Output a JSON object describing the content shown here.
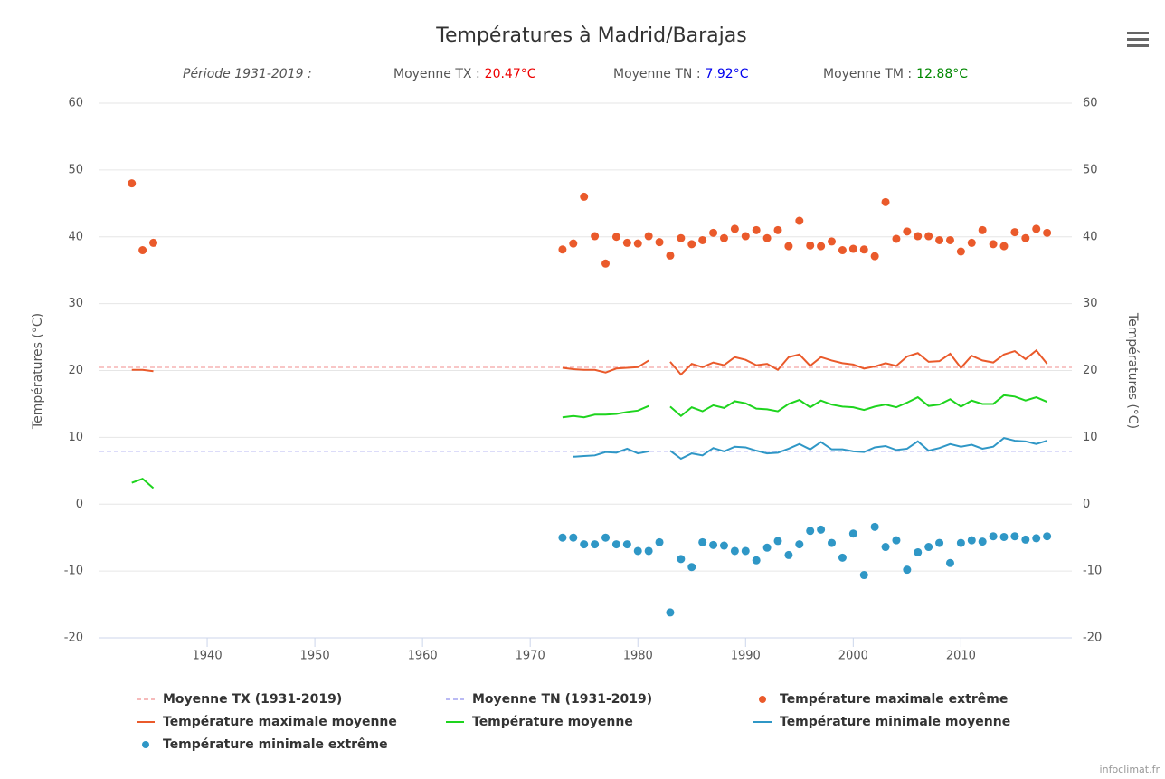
{
  "chart_data": {
    "type": "line",
    "title": "Températures à Madrid/Barajas",
    "period": "Période 1931-2019 :",
    "averages": [
      {
        "label": "Moyenne TX :",
        "value": 20.47,
        "value_label": "20.47°C",
        "color": "#ee0000",
        "line_name": "Moyenne TX (1931-2019)",
        "line_color": "#f4a3a3"
      },
      {
        "label": "Moyenne TN :",
        "value": 7.92,
        "value_label": "7.92°C",
        "color": "#0000ee",
        "line_name": "Moyenne TN (1931-2019)",
        "line_color": "#a3a3f0"
      },
      {
        "label": "Moyenne TM :",
        "value": 12.88,
        "value_label": "12.88°C",
        "color": "#008800"
      }
    ],
    "y_label": "Températures (°C)",
    "y2_label": "Températures (°C)",
    "x": [
      1933,
      1934,
      1935,
      1936,
      1973,
      1974,
      1975,
      1976,
      1977,
      1978,
      1979,
      1980,
      1981,
      1982,
      1983,
      1984,
      1985,
      1986,
      1987,
      1988,
      1989,
      1990,
      1991,
      1992,
      1993,
      1994,
      1995,
      1996,
      1997,
      1998,
      1999,
      2000,
      2001,
      2002,
      2003,
      2004,
      2005,
      2006,
      2007,
      2008,
      2009,
      2010,
      2011,
      2012,
      2013,
      2014,
      2015,
      2016,
      2017,
      2018
    ],
    "xlim": [
      1930,
      2020.3
    ],
    "xticks": [
      1940,
      1950,
      1960,
      1970,
      1980,
      1990,
      2000,
      2010
    ],
    "ylim": [
      -20,
      60
    ],
    "yticks": [
      -20,
      -10,
      0,
      10,
      20,
      30,
      40,
      50,
      60
    ],
    "y2lim": [
      -20,
      60
    ],
    "y2ticks": [
      -20,
      -10,
      0,
      10,
      20,
      30,
      40,
      50,
      60
    ],
    "grid": true,
    "series": [
      {
        "name": "Température maximale extrême",
        "type": "scatter",
        "color": "#ea5a2b",
        "values": [
          48,
          38,
          39.1,
          null,
          38.1,
          39,
          46,
          40.1,
          36,
          40,
          39.1,
          39,
          40.1,
          39.2,
          37.2,
          39.8,
          38.9,
          39.5,
          40.6,
          39.8,
          41.2,
          40.1,
          41,
          39.8,
          41,
          38.6,
          42.4,
          38.7,
          38.6,
          39.3,
          38,
          38.2,
          38.1,
          37.1,
          45.2,
          39.7,
          40.8,
          40.1,
          40.1,
          39.5,
          39.5,
          37.8,
          39.1,
          41,
          38.9,
          38.6,
          40.7,
          39.8,
          41.2,
          40.6
        ]
      },
      {
        "name": "Température maximale moyenne",
        "type": "line",
        "color": "#ea5a2b",
        "values": [
          20.1,
          20.1,
          19.9,
          null,
          20.4,
          20.2,
          20.1,
          20.1,
          19.7,
          20.3,
          20.4,
          20.5,
          21.5,
          null,
          21.3,
          19.4,
          21,
          20.5,
          21.2,
          20.8,
          22,
          21.6,
          20.8,
          21,
          20.1,
          22,
          22.4,
          20.7,
          22,
          21.5,
          21.1,
          20.9,
          20.3,
          20.6,
          21.1,
          20.7,
          22.1,
          22.6,
          21.3,
          21.4,
          22.5,
          20.4,
          22.2,
          21.5,
          21.2,
          22.4,
          22.9,
          21.7,
          23,
          21
        ]
      },
      {
        "name": "Température moyenne",
        "type": "line",
        "color": "#1ed41e",
        "values": [
          3.2,
          3.8,
          2.4,
          null,
          13,
          13.2,
          13,
          13.4,
          13.4,
          13.5,
          13.8,
          14,
          14.7,
          null,
          14.6,
          13.2,
          14.5,
          13.9,
          14.8,
          14.4,
          15.4,
          15.1,
          14.3,
          14.2,
          13.9,
          15,
          15.6,
          14.5,
          15.5,
          14.9,
          14.6,
          14.5,
          14.1,
          14.6,
          14.9,
          14.5,
          15.2,
          16,
          14.7,
          14.9,
          15.7,
          14.6,
          15.5,
          15,
          15,
          16.3,
          16.1,
          15.5,
          16,
          15.3
        ]
      },
      {
        "name": "Température minimale moyenne",
        "type": "line",
        "color": "#2f97c6",
        "values": [
          null,
          null,
          null,
          null,
          null,
          7.1,
          7.2,
          7.3,
          7.8,
          7.7,
          8.3,
          7.6,
          7.9,
          null,
          8,
          6.8,
          7.6,
          7.3,
          8.4,
          7.9,
          8.6,
          8.5,
          8,
          7.6,
          7.7,
          8.3,
          9,
          8.2,
          9.3,
          8.2,
          8.2,
          7.9,
          7.8,
          8.5,
          8.7,
          8.1,
          8.3,
          9.4,
          8,
          8.4,
          9,
          8.6,
          8.9,
          8.3,
          8.6,
          9.9,
          9.5,
          9.4,
          9,
          9.5
        ]
      },
      {
        "name": "Température minimale extrême",
        "type": "scatter",
        "color": "#2f97c6",
        "values": [
          null,
          null,
          null,
          null,
          -5,
          -5,
          -6,
          -6,
          -5,
          -6,
          -6,
          -7,
          -7,
          -5.7,
          -16.2,
          -8.2,
          -9.4,
          -5.7,
          -6.1,
          -6.2,
          -7,
          -7,
          -8.4,
          -6.5,
          -5.5,
          -7.6,
          -6,
          -4,
          -3.8,
          -5.8,
          -8,
          -4.4,
          -10.6,
          -3.4,
          -6.4,
          -5.4,
          -9.8,
          -7.2,
          -6.4,
          -5.8,
          -8.8,
          -5.8,
          -5.4,
          -5.6,
          -4.8,
          -4.9,
          -4.8,
          -5.3,
          -5.1,
          -4.8
        ]
      }
    ],
    "credits": "infoclimat.fr"
  }
}
